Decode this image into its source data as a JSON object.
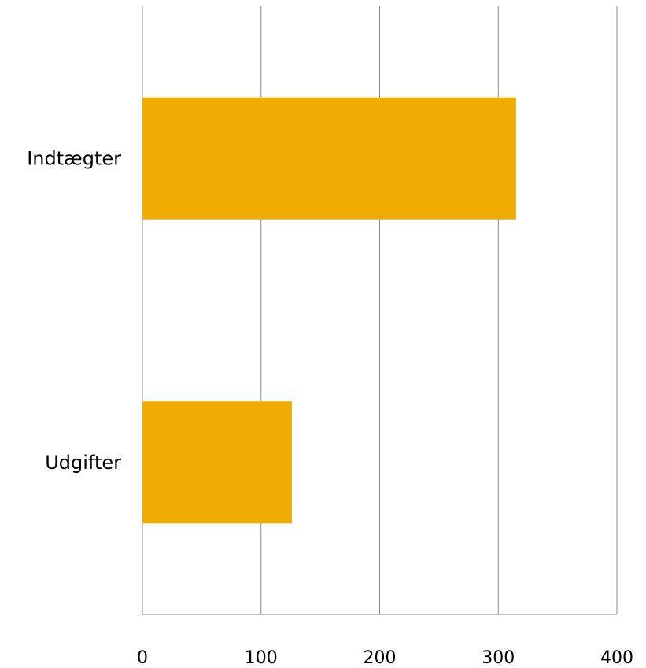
{
  "chart_data": {
    "type": "bar",
    "orientation": "horizontal",
    "categories": [
      "Indtægter",
      "Udgifter"
    ],
    "values": [
      315,
      126
    ],
    "xlim": [
      0,
      400
    ],
    "x_ticks": [
      "0",
      "100",
      "200",
      "300",
      "400"
    ],
    "grid": true,
    "legend": "none",
    "bar_color": "#F0AC00",
    "gridline_color": "#8C8C8C"
  }
}
